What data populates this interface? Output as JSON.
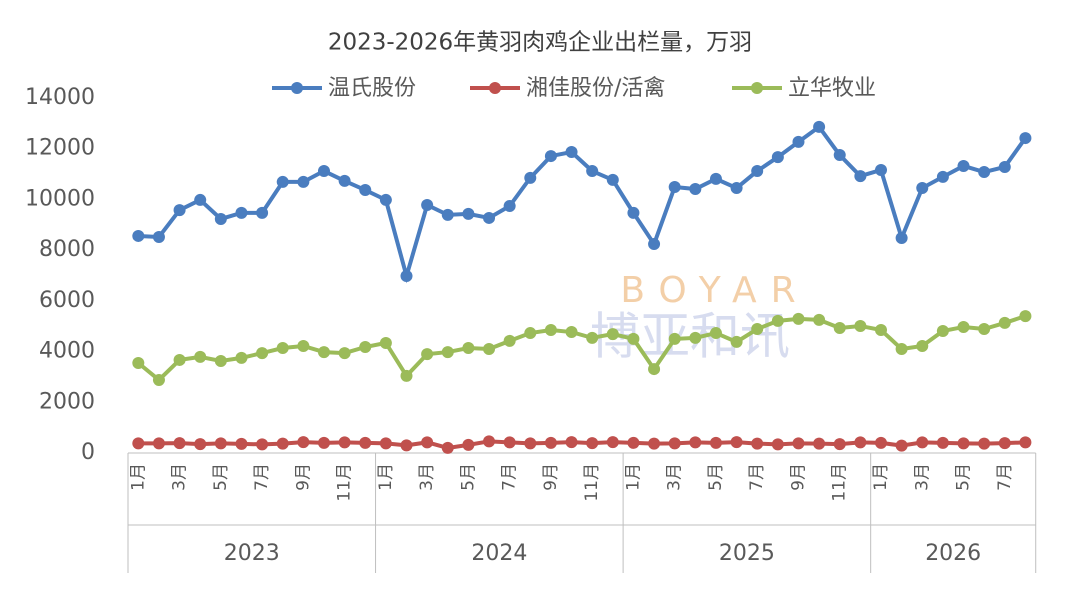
{
  "chart_data": {
    "type": "line",
    "title": "2023-2026年黄羽肉鸡企业出栏量，万羽",
    "watermark": [
      "BOYAR",
      "博亚和讯"
    ],
    "categories": [
      "1月",
      null,
      "3月",
      null,
      "5月",
      null,
      "7月",
      null,
      "9月",
      null,
      "11月",
      null,
      "1月",
      null,
      "3月",
      null,
      "5月",
      null,
      "7月",
      null,
      "9月",
      null,
      "11月",
      null,
      "1月",
      null,
      "3月",
      null,
      "5月",
      null,
      "7月",
      null,
      "9月",
      null,
      "11月",
      null,
      "1月",
      null,
      "3月",
      null,
      "5月",
      null,
      "7月",
      null
    ],
    "groups": [
      {
        "label": "2023",
        "count": 12
      },
      {
        "label": "2024",
        "count": 12
      },
      {
        "label": "2025",
        "count": 12
      },
      {
        "label": "2026",
        "count": 8
      }
    ],
    "series": [
      {
        "name": "温氏股份",
        "color": "#4a7dbf",
        "values": [
          8560,
          8520,
          9580,
          9980,
          9230,
          9470,
          9470,
          10690,
          10690,
          11120,
          10730,
          10370,
          9980,
          6980,
          9780,
          9390,
          9430,
          9270,
          9740,
          10850,
          11710,
          11870,
          11120,
          10770,
          9470,
          8240,
          10490,
          10410,
          10810,
          10450,
          11120,
          11670,
          12270,
          12860,
          11750,
          10920,
          11160,
          8480,
          10450,
          10890,
          11320,
          11080,
          11280,
          12420
        ]
      },
      {
        "name": "湘佳股份/活禽",
        "color": "#c0504d",
        "values": [
          380,
          380,
          390,
          350,
          380,
          360,
          340,
          370,
          430,
          400,
          420,
          400,
          380,
          300,
          420,
          200,
          320,
          460,
          420,
          380,
          400,
          430,
          390,
          430,
          400,
          370,
          380,
          420,
          400,
          430,
          370,
          340,
          380,
          370,
          350,
          420,
          400,
          290,
          420,
          400,
          380,
          370,
          390,
          420
        ]
      },
      {
        "name": "立华牧业",
        "color": "#9bbb59",
        "values": [
          3550,
          2880,
          3670,
          3790,
          3630,
          3750,
          3940,
          4140,
          4220,
          3980,
          3940,
          4180,
          4340,
          3040,
          3900,
          3980,
          4140,
          4100,
          4420,
          4730,
          4850,
          4770,
          4540,
          4690,
          4500,
          3310,
          4500,
          4540,
          4730,
          4380,
          4890,
          5210,
          5290,
          5250,
          4930,
          5010,
          4850,
          4100,
          4220,
          4810,
          4970,
          4890,
          5130,
          5400
        ]
      }
    ],
    "ylim": [
      0,
      14000
    ],
    "yticks": [
      0,
      2000,
      4000,
      6000,
      8000,
      10000,
      12000,
      14000
    ],
    "grid": false,
    "legend": "top"
  }
}
